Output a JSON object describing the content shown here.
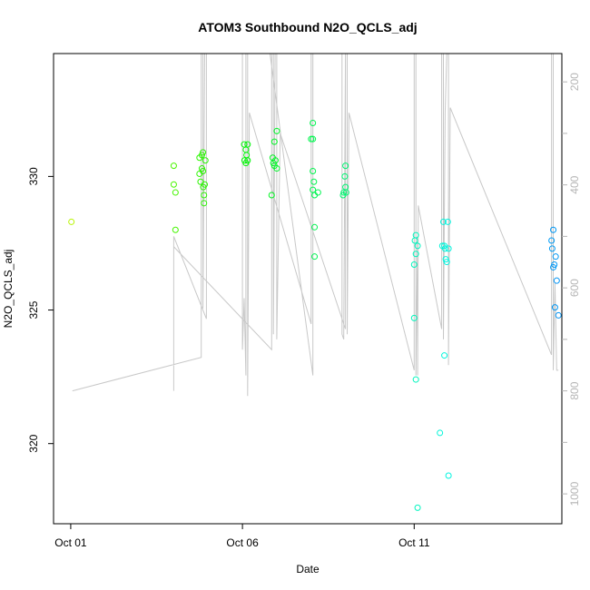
{
  "chart_data": {
    "type": "scatter",
    "title": "ATOM3 Southbound N2O_QCLS_adj",
    "xlabel": "Date",
    "ylabel": "N2O_QCLS_adj",
    "x_ticks": [
      {
        "value": 0,
        "label": "Oct 01"
      },
      {
        "value": 5,
        "label": "Oct 06"
      },
      {
        "value": 10,
        "label": "Oct 11"
      }
    ],
    "x_range": [
      -0.5,
      14.3
    ],
    "ylim": [
      317,
      334.6
    ],
    "y_ticks": [
      320,
      325,
      330
    ],
    "y2_label_ticks": [
      200,
      400,
      600,
      800,
      1000
    ],
    "y2_range_inverted": [
      145,
      1058
    ],
    "colors": {
      "axis": "#000000",
      "secondary_axis": "#b5b5b5",
      "profile_line": "#c8c8c8"
    },
    "points": [
      {
        "x": 0.02,
        "y": 328.3
      },
      {
        "x": 3.0,
        "y": 330.4
      },
      {
        "x": 3.0,
        "y": 329.7
      },
      {
        "x": 3.05,
        "y": 329.4
      },
      {
        "x": 3.05,
        "y": 328.0
      },
      {
        "x": 3.75,
        "y": 330.7
      },
      {
        "x": 3.75,
        "y": 330.1
      },
      {
        "x": 3.78,
        "y": 329.8
      },
      {
        "x": 3.82,
        "y": 330.3
      },
      {
        "x": 3.82,
        "y": 330.8
      },
      {
        "x": 3.85,
        "y": 330.9
      },
      {
        "x": 3.85,
        "y": 330.2
      },
      {
        "x": 3.86,
        "y": 329.6
      },
      {
        "x": 3.88,
        "y": 329.3
      },
      {
        "x": 3.88,
        "y": 329.0
      },
      {
        "x": 3.9,
        "y": 329.7
      },
      {
        "x": 3.92,
        "y": 330.6
      },
      {
        "x": 5.05,
        "y": 331.2
      },
      {
        "x": 5.1,
        "y": 331.0
      },
      {
        "x": 5.12,
        "y": 330.8
      },
      {
        "x": 5.15,
        "y": 331.2
      },
      {
        "x": 5.15,
        "y": 330.6
      },
      {
        "x": 5.06,
        "y": 330.6
      },
      {
        "x": 5.1,
        "y": 330.5
      },
      {
        "x": 5.85,
        "y": 329.3
      },
      {
        "x": 5.88,
        "y": 330.7
      },
      {
        "x": 5.9,
        "y": 330.5
      },
      {
        "x": 5.93,
        "y": 330.4
      },
      {
        "x": 5.93,
        "y": 331.3
      },
      {
        "x": 5.96,
        "y": 330.6
      },
      {
        "x": 6.0,
        "y": 330.3
      },
      {
        "x": 6.0,
        "y": 331.7
      },
      {
        "x": 7.0,
        "y": 331.4
      },
      {
        "x": 7.05,
        "y": 331.4
      },
      {
        "x": 7.05,
        "y": 332.0
      },
      {
        "x": 7.05,
        "y": 330.2
      },
      {
        "x": 7.05,
        "y": 329.5
      },
      {
        "x": 7.08,
        "y": 329.8
      },
      {
        "x": 7.1,
        "y": 329.3
      },
      {
        "x": 7.1,
        "y": 328.1
      },
      {
        "x": 7.1,
        "y": 327.0
      },
      {
        "x": 7.2,
        "y": 329.4
      },
      {
        "x": 7.93,
        "y": 329.3
      },
      {
        "x": 7.95,
        "y": 329.4
      },
      {
        "x": 7.98,
        "y": 330.0
      },
      {
        "x": 8.0,
        "y": 330.4
      },
      {
        "x": 8.0,
        "y": 329.6
      },
      {
        "x": 8.02,
        "y": 329.4
      },
      {
        "x": 10.02,
        "y": 327.6
      },
      {
        "x": 10.0,
        "y": 326.7
      },
      {
        "x": 10.05,
        "y": 327.8
      },
      {
        "x": 10.05,
        "y": 327.1
      },
      {
        "x": 10.1,
        "y": 327.4
      },
      {
        "x": 10.0,
        "y": 324.7
      },
      {
        "x": 10.05,
        "y": 322.4
      },
      {
        "x": 10.1,
        "y": 317.6
      },
      {
        "x": 10.75,
        "y": 320.4
      },
      {
        "x": 10.82,
        "y": 327.4
      },
      {
        "x": 10.85,
        "y": 328.3
      },
      {
        "x": 10.88,
        "y": 327.4
      },
      {
        "x": 10.9,
        "y": 327.3
      },
      {
        "x": 10.92,
        "y": 326.9
      },
      {
        "x": 10.95,
        "y": 326.8
      },
      {
        "x": 10.98,
        "y": 328.3
      },
      {
        "x": 11.0,
        "y": 327.3
      },
      {
        "x": 10.88,
        "y": 323.3
      },
      {
        "x": 11.0,
        "y": 318.8
      },
      {
        "x": 14.0,
        "y": 327.6
      },
      {
        "x": 14.02,
        "y": 327.3
      },
      {
        "x": 14.05,
        "y": 328.0
      },
      {
        "x": 14.05,
        "y": 326.6
      },
      {
        "x": 14.08,
        "y": 326.7
      },
      {
        "x": 14.1,
        "y": 325.1
      },
      {
        "x": 14.15,
        "y": 326.1
      },
      {
        "x": 14.12,
        "y": 327.0
      },
      {
        "x": 14.2,
        "y": 324.8
      }
    ],
    "profile_line": [
      {
        "x": 0.05,
        "y2": 800
      },
      {
        "x": 3.8,
        "y2": 735
      },
      {
        "x": 3.8,
        "y2": 140
      },
      {
        "x": 3.85,
        "y2": 140
      },
      {
        "x": 3.85,
        "y2": 640
      },
      {
        "x": 3.9,
        "y2": 140
      },
      {
        "x": 3.95,
        "y2": 140
      },
      {
        "x": 3.95,
        "y2": 660
      },
      {
        "x": 3.0,
        "y2": 500
      },
      {
        "x": 3.0,
        "y2": 800
      },
      {
        "x": 3.0,
        "y2": 520
      },
      {
        "x": 5.85,
        "y2": 720
      },
      {
        "x": 5.85,
        "y2": 140
      },
      {
        "x": 5.0,
        "y2": 140
      },
      {
        "x": 5.0,
        "y2": 720
      },
      {
        "x": 5.05,
        "y2": 620
      },
      {
        "x": 5.1,
        "y2": 770
      },
      {
        "x": 5.1,
        "y2": 140
      },
      {
        "x": 5.15,
        "y2": 140
      },
      {
        "x": 5.15,
        "y2": 810
      },
      {
        "x": 5.2,
        "y2": 260
      },
      {
        "x": 7.0,
        "y2": 670
      },
      {
        "x": 7.0,
        "y2": 140
      },
      {
        "x": 7.05,
        "y2": 140
      },
      {
        "x": 7.05,
        "y2": 770
      },
      {
        "x": 5.8,
        "y2": 140
      },
      {
        "x": 5.9,
        "y2": 140
      },
      {
        "x": 5.9,
        "y2": 690
      },
      {
        "x": 5.95,
        "y2": 140
      },
      {
        "x": 6.0,
        "y2": 140
      },
      {
        "x": 6.0,
        "y2": 700
      },
      {
        "x": 6.1,
        "y2": 300
      },
      {
        "x": 8.0,
        "y2": 680
      },
      {
        "x": 8.0,
        "y2": 140
      },
      {
        "x": 7.9,
        "y2": 140
      },
      {
        "x": 7.9,
        "y2": 690
      },
      {
        "x": 7.95,
        "y2": 700
      },
      {
        "x": 8.0,
        "y2": 140
      },
      {
        "x": 8.05,
        "y2": 140
      },
      {
        "x": 8.05,
        "y2": 690
      },
      {
        "x": 8.1,
        "y2": 260
      },
      {
        "x": 10.0,
        "y2": 760
      },
      {
        "x": 10.0,
        "y2": 140
      },
      {
        "x": 10.05,
        "y2": 140
      },
      {
        "x": 10.05,
        "y2": 770
      },
      {
        "x": 10.1,
        "y2": 500
      },
      {
        "x": 10.1,
        "y2": 770
      },
      {
        "x": 10.12,
        "y2": 440
      },
      {
        "x": 10.8,
        "y2": 680
      },
      {
        "x": 10.8,
        "y2": 140
      },
      {
        "x": 10.85,
        "y2": 140
      },
      {
        "x": 10.85,
        "y2": 700
      },
      {
        "x": 10.9,
        "y2": 260
      },
      {
        "x": 10.95,
        "y2": 140
      },
      {
        "x": 11.0,
        "y2": 140
      },
      {
        "x": 11.0,
        "y2": 750
      },
      {
        "x": 11.05,
        "y2": 250
      },
      {
        "x": 14.0,
        "y2": 730
      },
      {
        "x": 14.0,
        "y2": 140
      },
      {
        "x": 14.05,
        "y2": 140
      },
      {
        "x": 14.05,
        "y2": 760
      },
      {
        "x": 14.1,
        "y2": 590
      },
      {
        "x": 14.15,
        "y2": 760
      },
      {
        "x": 14.2,
        "y2": 760
      }
    ]
  }
}
